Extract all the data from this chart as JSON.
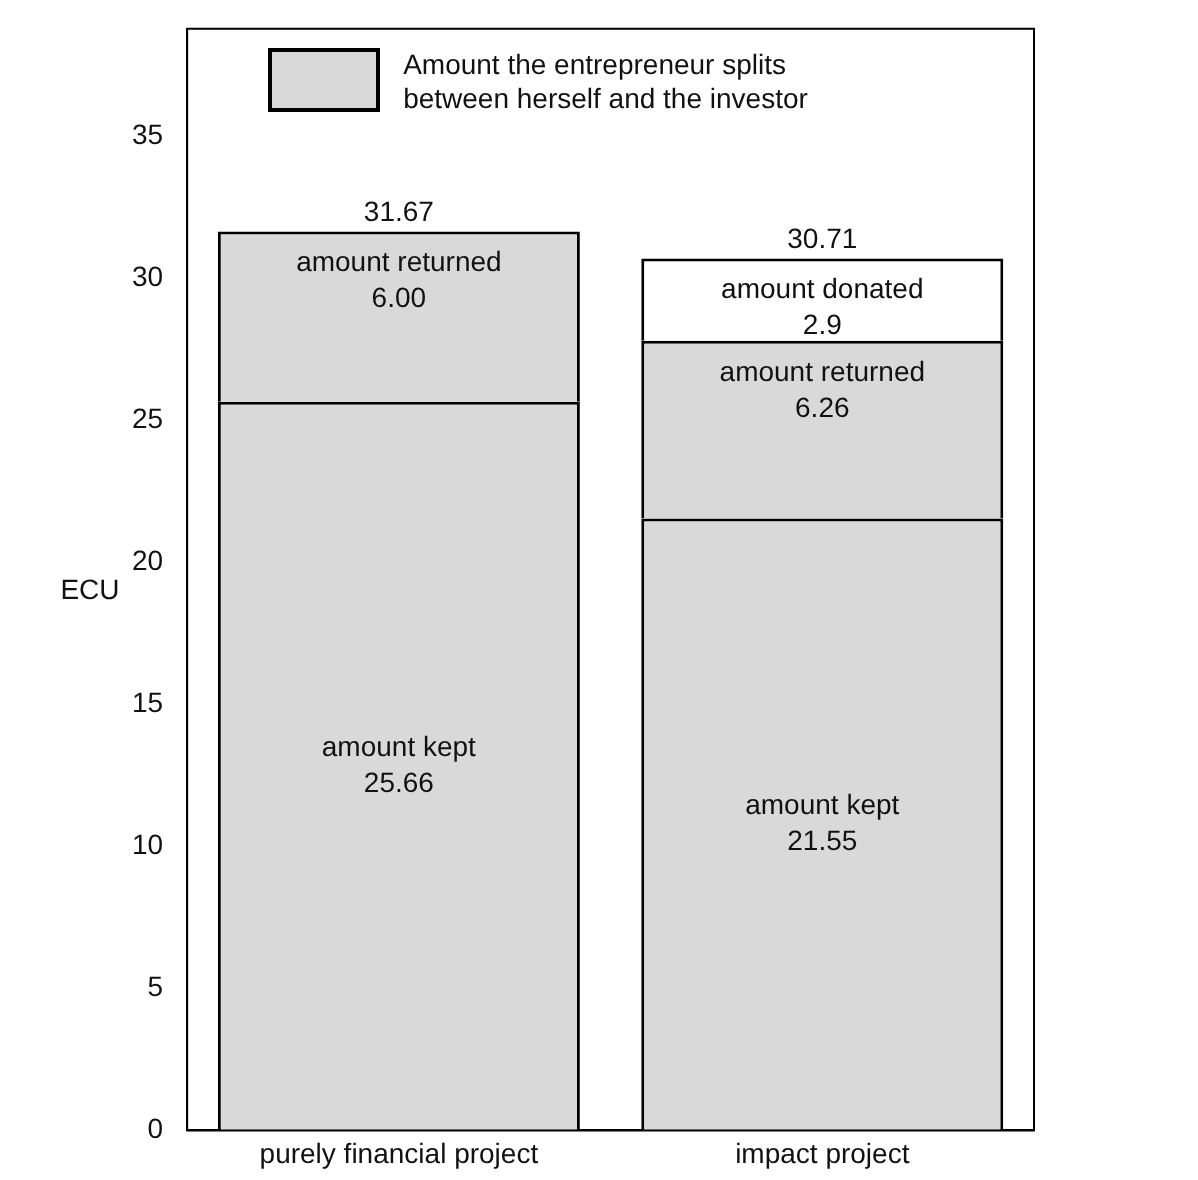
{
  "chart_data": {
    "type": "bar",
    "stacked": true,
    "ylabel": "ECU",
    "annotations": [
      "Amount the entrepreneur splits\nbetween herself and the investor"
    ],
    "categories": [
      "purely financial project",
      "impact project"
    ],
    "series": [
      {
        "name": "amount kept",
        "color": "#d9d9d9",
        "values": [
          25.66,
          21.55
        ],
        "value_labels": [
          "25.66",
          "21.55"
        ]
      },
      {
        "name": "amount returned",
        "color": "#d9d9d9",
        "values": [
          6.0,
          6.26
        ],
        "value_labels": [
          "6.00",
          "6.26"
        ]
      },
      {
        "name": "amount donated",
        "color": "#ffffff",
        "values": [
          null,
          2.9
        ],
        "value_labels": [
          null,
          "2.9"
        ]
      }
    ],
    "totals": [
      "31.67",
      "30.71"
    ],
    "ylim": [
      0,
      38.8
    ],
    "yticks": [
      0,
      5,
      10,
      15,
      20,
      25,
      30,
      35
    ],
    "grid": false
  }
}
